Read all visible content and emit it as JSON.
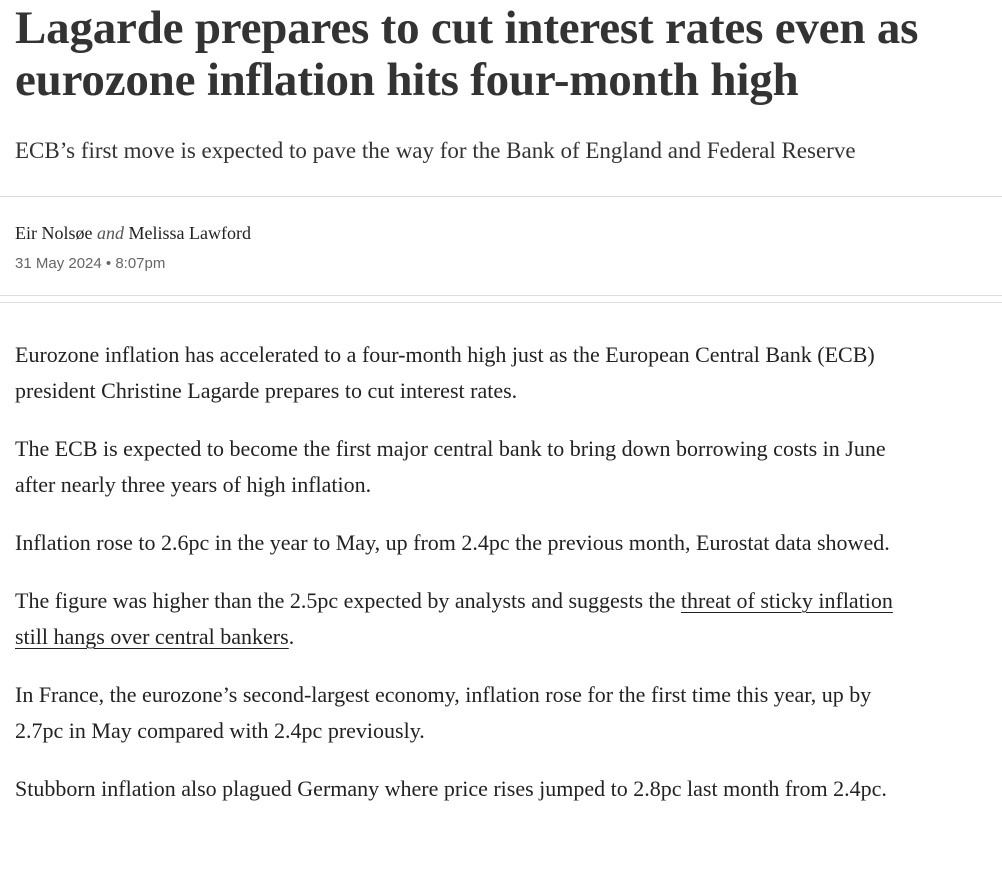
{
  "header": {
    "title": "Lagarde prepares to cut interest rates even as eurozone inflation hits four-month high",
    "subtitle": "ECB’s first move is expected to pave the way for the Bank of England and Federal Reserve"
  },
  "byline": {
    "authors": [
      "Eir Nolsøe",
      "Melissa Lawford"
    ],
    "conjunction": "and",
    "date": "31 May 2024 • 8:07pm"
  },
  "body": {
    "paragraphs": [
      "Eurozone inflation has accelerated to a four-month high just as the European Central Bank (ECB) president Christine Lagarde prepares to cut interest rates.",
      "The ECB is expected to become the first major central bank to bring down borrowing costs in June after nearly three years of high inflation.",
      "Inflation rose to 2.6pc in the year to May, up from 2.4pc the previous month, Eurostat data showed.",
      "In France, the eurozone’s second-largest economy, inflation rose for the first time this year, up by 2.7pc in May compared with 2.4pc previously.",
      "Stubborn inflation also plagued Germany where price rises jumped to 2.8pc last month from 2.4pc."
    ],
    "linked_paragraph": {
      "before": "The figure was higher than the 2.5pc expected by analysts and suggests the ",
      "link": "threat of sticky inflation still hangs over central bankers",
      "after": "."
    }
  }
}
